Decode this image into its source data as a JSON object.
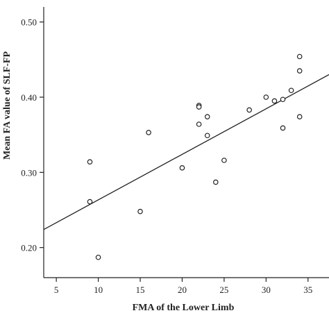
{
  "chart_data": {
    "type": "scatter",
    "title": "",
    "xlabel": "FMA of the Lower Limb",
    "ylabel": "Mean FA value of SLF-FP",
    "xlim": [
      3.5,
      37.5
    ],
    "ylim": [
      0.16,
      0.52
    ],
    "x_ticks": [
      5,
      10,
      15,
      20,
      25,
      30,
      35
    ],
    "x_tick_labels": [
      "5",
      "10",
      "15",
      "20",
      "25",
      "30",
      "35"
    ],
    "y_ticks": [
      0.2,
      0.3,
      0.4,
      0.5
    ],
    "y_tick_labels": [
      "0.20",
      "0.30",
      "0.40",
      "0.50"
    ],
    "grid": false,
    "legend": "none",
    "series": [
      {
        "x": [
          9,
          9,
          10,
          15,
          16,
          20,
          22,
          22,
          22,
          23,
          23,
          24,
          25,
          28,
          30,
          31,
          32,
          32,
          33,
          34,
          34,
          34
        ],
        "y": [
          0.314,
          0.261,
          0.187,
          0.248,
          0.353,
          0.306,
          0.389,
          0.387,
          0.364,
          0.374,
          0.349,
          0.287,
          0.316,
          0.383,
          0.4,
          0.395,
          0.397,
          0.359,
          0.409,
          0.454,
          0.435,
          0.374
        ]
      }
    ],
    "regression_line": {
      "x": [
        3.5,
        37.5
      ],
      "y": [
        0.224,
        0.43
      ]
    }
  }
}
